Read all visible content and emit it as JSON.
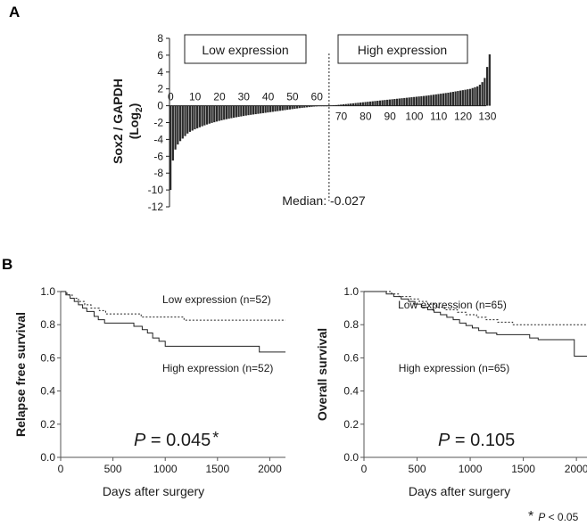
{
  "panel_labels": {
    "a": "A",
    "b": "B"
  },
  "chart_data": [
    {
      "type": "bar",
      "id": "waterfall",
      "ylabel": "Sox2 / GAPDH (Log2)",
      "ylabel_main": "Sox2 / GAPDH",
      "ylabel_sub_pre": "(Log",
      "ylabel_sub_sub": "2",
      "ylabel_sub_post": ")",
      "ylim": [
        -12,
        8
      ],
      "yticks": [
        8,
        6,
        4,
        2,
        0,
        -2,
        -4,
        -6,
        -8,
        -10,
        -12
      ],
      "xticks": [
        0,
        10,
        20,
        30,
        40,
        50,
        60,
        70,
        80,
        90,
        100,
        110,
        120,
        130
      ],
      "n": 130,
      "median_index": 65,
      "median_label": "Median: -0.027",
      "groups": {
        "low": "Low expression",
        "high": "High expression"
      },
      "values": [
        -10.0,
        -6.5,
        -5.2,
        -4.6,
        -4.2,
        -3.9,
        -3.6,
        -3.3,
        -3.1,
        -2.95,
        -2.8,
        -2.68,
        -2.56,
        -2.44,
        -2.33,
        -2.23,
        -2.13,
        -2.04,
        -1.96,
        -1.88,
        -1.8,
        -1.73,
        -1.66,
        -1.6,
        -1.54,
        -1.48,
        -1.42,
        -1.37,
        -1.32,
        -1.27,
        -1.22,
        -1.17,
        -1.12,
        -1.08,
        -1.04,
        -1.0,
        -0.96,
        -0.92,
        -0.88,
        -0.84,
        -0.8,
        -0.76,
        -0.72,
        -0.68,
        -0.64,
        -0.6,
        -0.56,
        -0.52,
        -0.48,
        -0.44,
        -0.4,
        -0.36,
        -0.32,
        -0.28,
        -0.25,
        -0.22,
        -0.19,
        -0.16,
        -0.13,
        -0.1,
        -0.08,
        -0.06,
        -0.05,
        -0.04,
        -0.03,
        -0.027,
        0.02,
        0.05,
        0.08,
        0.11,
        0.14,
        0.17,
        0.2,
        0.23,
        0.26,
        0.29,
        0.32,
        0.35,
        0.38,
        0.41,
        0.44,
        0.47,
        0.5,
        0.53,
        0.56,
        0.59,
        0.62,
        0.65,
        0.68,
        0.71,
        0.74,
        0.77,
        0.8,
        0.83,
        0.86,
        0.89,
        0.92,
        0.95,
        0.98,
        1.01,
        1.04,
        1.07,
        1.1,
        1.13,
        1.16,
        1.19,
        1.23,
        1.27,
        1.31,
        1.35,
        1.39,
        1.43,
        1.47,
        1.51,
        1.55,
        1.6,
        1.65,
        1.7,
        1.75,
        1.8,
        1.85,
        1.9,
        1.95,
        2.0,
        2.1,
        2.2,
        2.3,
        2.5,
        2.8,
        3.3,
        4.6,
        6.1
      ]
    },
    {
      "type": "line",
      "id": "km-rfs",
      "ylabel": "Relapse free survival",
      "xlabel": "Days after surgery",
      "xlim": [
        0,
        2150
      ],
      "ylim": [
        0,
        1.0
      ],
      "xticks": [
        0,
        500,
        1000,
        1500,
        2000
      ],
      "yticks": [
        "0.0",
        "0.2",
        "0.4",
        "0.6",
        "0.8",
        "1.0"
      ],
      "series": [
        {
          "name": "Low expression (n=52)",
          "style": "dashed",
          "points": [
            [
              0,
              1.0
            ],
            [
              60,
              0.98
            ],
            [
              110,
              0.96
            ],
            [
              170,
              0.94
            ],
            [
              230,
              0.92
            ],
            [
              290,
              0.9
            ],
            [
              370,
              0.885
            ],
            [
              430,
              0.865
            ],
            [
              700,
              0.865
            ],
            [
              770,
              0.846
            ],
            [
              1100,
              0.846
            ],
            [
              1180,
              0.827
            ],
            [
              2150,
              0.827
            ]
          ]
        },
        {
          "name": "High expression (n=52)",
          "style": "solid",
          "points": [
            [
              0,
              1.0
            ],
            [
              50,
              0.98
            ],
            [
              90,
              0.96
            ],
            [
              130,
              0.94
            ],
            [
              170,
              0.92
            ],
            [
              210,
              0.9
            ],
            [
              250,
              0.88
            ],
            [
              320,
              0.85
            ],
            [
              360,
              0.83
            ],
            [
              420,
              0.81
            ],
            [
              650,
              0.81
            ],
            [
              700,
              0.79
            ],
            [
              780,
              0.77
            ],
            [
              830,
              0.75
            ],
            [
              880,
              0.72
            ],
            [
              940,
              0.7
            ],
            [
              1000,
              0.67
            ],
            [
              1880,
              0.67
            ],
            [
              1900,
              0.635
            ],
            [
              2150,
              0.635
            ]
          ]
        }
      ],
      "p_prefix": "P",
      "p_value": " = 0.045",
      "significance": "*"
    },
    {
      "type": "line",
      "id": "km-os",
      "ylabel": "Overall survival",
      "xlabel": "Days after surgery",
      "xlim": [
        0,
        2150
      ],
      "ylim": [
        0,
        1.0
      ],
      "xticks": [
        0,
        500,
        1000,
        1500,
        2000
      ],
      "yticks": [
        "0.0",
        "0.2",
        "0.4",
        "0.6",
        "0.8",
        "1.0"
      ],
      "series": [
        {
          "name": "Low expression (n=65)",
          "style": "dashed",
          "points": [
            [
              0,
              1.0
            ],
            [
              200,
              1.0
            ],
            [
              260,
              0.985
            ],
            [
              330,
              0.97
            ],
            [
              440,
              0.955
            ],
            [
              520,
              0.94
            ],
            [
              600,
              0.924
            ],
            [
              680,
              0.905
            ],
            [
              760,
              0.89
            ],
            [
              880,
              0.875
            ],
            [
              960,
              0.86
            ],
            [
              1060,
              0.845
            ],
            [
              1150,
              0.83
            ],
            [
              1260,
              0.815
            ],
            [
              1400,
              0.8
            ],
            [
              2150,
              0.8
            ]
          ]
        },
        {
          "name": "High expression (n=65)",
          "style": "solid",
          "points": [
            [
              0,
              1.0
            ],
            [
              150,
              1.0
            ],
            [
              210,
              0.985
            ],
            [
              280,
              0.97
            ],
            [
              350,
              0.955
            ],
            [
              420,
              0.94
            ],
            [
              480,
              0.924
            ],
            [
              540,
              0.905
            ],
            [
              600,
              0.89
            ],
            [
              660,
              0.875
            ],
            [
              720,
              0.86
            ],
            [
              780,
              0.845
            ],
            [
              840,
              0.83
            ],
            [
              900,
              0.81
            ],
            [
              960,
              0.795
            ],
            [
              1020,
              0.78
            ],
            [
              1080,
              0.765
            ],
            [
              1150,
              0.75
            ],
            [
              1250,
              0.74
            ],
            [
              1500,
              0.74
            ],
            [
              1560,
              0.72
            ],
            [
              1640,
              0.71
            ],
            [
              1940,
              0.71
            ],
            [
              1980,
              0.61
            ],
            [
              2150,
              0.61
            ]
          ]
        }
      ],
      "p_prefix": "P",
      "p_value": " = 0.105",
      "significance": ""
    }
  ],
  "footnote": {
    "star": "*",
    "text_prefix": "P",
    "text_rest": " < 0.05"
  }
}
